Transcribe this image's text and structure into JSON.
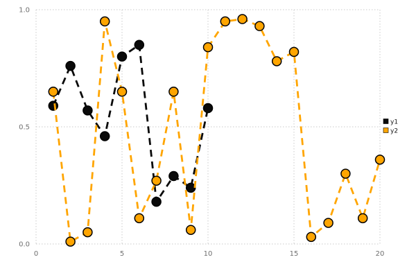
{
  "chart_data": {
    "type": "line",
    "title": "",
    "xlabel": "",
    "ylabel": "",
    "xlim": [
      0,
      20
    ],
    "ylim": [
      0.0,
      1.0
    ],
    "x_ticks": [
      0,
      5,
      10,
      15,
      20
    ],
    "x_tick_labels": [
      "0",
      "5",
      "10",
      "15",
      "20"
    ],
    "y_ticks": [
      0.0,
      0.5,
      1.0
    ],
    "y_tick_labels": [
      "0.0",
      "0.5",
      "1.0"
    ],
    "grid": true,
    "legend_position": "right-outside",
    "background_color": "#ffffff",
    "grid_color": "#c9c9c9",
    "series": [
      {
        "name": "y1",
        "color": "#0a0a0a",
        "marker_outline": "#000000",
        "line_style": "dashed",
        "marker": "circle",
        "x": [
          1,
          2,
          3,
          4,
          5,
          6,
          7,
          8,
          9,
          10
        ],
        "y": [
          0.59,
          0.76,
          0.57,
          0.46,
          0.8,
          0.85,
          0.18,
          0.29,
          0.24,
          0.58
        ]
      },
      {
        "name": "y2",
        "color": "#ffa500",
        "marker_outline": "#000000",
        "line_style": "dashed",
        "marker": "circle",
        "x": [
          1,
          2,
          3,
          4,
          5,
          6,
          7,
          8,
          9,
          10,
          11,
          12,
          13,
          14,
          15,
          16,
          17,
          18,
          19,
          20
        ],
        "y": [
          0.65,
          0.01,
          0.05,
          0.95,
          0.65,
          0.11,
          0.27,
          0.65,
          0.06,
          0.84,
          0.95,
          0.96,
          0.93,
          0.78,
          0.82,
          0.03,
          0.09,
          0.3,
          0.11,
          0.36
        ]
      }
    ]
  }
}
